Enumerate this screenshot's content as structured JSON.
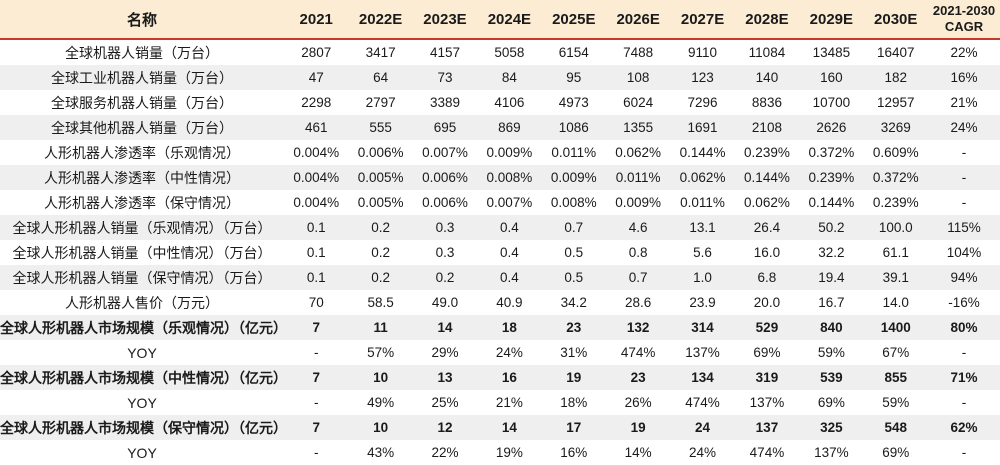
{
  "colors": {
    "header_bg": "#FBECD3",
    "accent_red": "#C5392B",
    "stripe": "#EFEFEF",
    "text": "#1A1A1A"
  },
  "table": {
    "header": {
      "name_label": "名称",
      "columns": [
        "2021",
        "2022E",
        "2023E",
        "2024E",
        "2025E",
        "2026E",
        "2027E",
        "2028E",
        "2029E",
        "2030E"
      ],
      "cagr_line1": "2021-2030",
      "cagr_line2": "CAGR"
    },
    "rows": [
      {
        "label": "全球机器人销量（万台）",
        "bold": false,
        "values": [
          "2807",
          "3417",
          "4157",
          "5058",
          "6154",
          "7488",
          "9110",
          "11084",
          "13485",
          "16407",
          "22%"
        ]
      },
      {
        "label": "全球工业机器人销量（万台）",
        "bold": false,
        "values": [
          "47",
          "64",
          "73",
          "84",
          "95",
          "108",
          "123",
          "140",
          "160",
          "182",
          "16%"
        ]
      },
      {
        "label": "全球服务机器人销量（万台）",
        "bold": false,
        "values": [
          "2298",
          "2797",
          "3389",
          "4106",
          "4973",
          "6024",
          "7296",
          "8836",
          "10700",
          "12957",
          "21%"
        ]
      },
      {
        "label": "全球其他机器人销量（万台）",
        "bold": false,
        "values": [
          "461",
          "555",
          "695",
          "869",
          "1086",
          "1355",
          "1691",
          "2108",
          "2626",
          "3269",
          "24%"
        ]
      },
      {
        "label": "人形机器人渗透率（乐观情况）",
        "bold": false,
        "values": [
          "0.004%",
          "0.006%",
          "0.007%",
          "0.009%",
          "0.011%",
          "0.062%",
          "0.144%",
          "0.239%",
          "0.372%",
          "0.609%",
          "-"
        ]
      },
      {
        "label": "人形机器人渗透率（中性情况）",
        "bold": false,
        "values": [
          "0.004%",
          "0.005%",
          "0.006%",
          "0.008%",
          "0.009%",
          "0.011%",
          "0.062%",
          "0.144%",
          "0.239%",
          "0.372%",
          "-"
        ]
      },
      {
        "label": "人形机器人渗透率（保守情况）",
        "bold": false,
        "values": [
          "0.004%",
          "0.005%",
          "0.006%",
          "0.007%",
          "0.008%",
          "0.009%",
          "0.011%",
          "0.062%",
          "0.144%",
          "0.239%",
          "-"
        ]
      },
      {
        "label": "全球人形机器人销量（乐观情况）（万台）",
        "bold": false,
        "values": [
          "0.1",
          "0.2",
          "0.3",
          "0.4",
          "0.7",
          "4.6",
          "13.1",
          "26.4",
          "50.2",
          "100.0",
          "115%"
        ]
      },
      {
        "label": "全球人形机器人销量（中性情况）（万台）",
        "bold": false,
        "values": [
          "0.1",
          "0.2",
          "0.3",
          "0.4",
          "0.5",
          "0.8",
          "5.6",
          "16.0",
          "32.2",
          "61.1",
          "104%"
        ]
      },
      {
        "label": "全球人形机器人销量（保守情况）（万台）",
        "bold": false,
        "values": [
          "0.1",
          "0.2",
          "0.2",
          "0.4",
          "0.5",
          "0.7",
          "1.0",
          "6.8",
          "19.4",
          "39.1",
          "94%"
        ]
      },
      {
        "label": "人形机器人售价（万元）",
        "bold": false,
        "values": [
          "70",
          "58.5",
          "49.0",
          "40.9",
          "34.2",
          "28.6",
          "23.9",
          "20.0",
          "16.7",
          "14.0",
          "-16%"
        ]
      },
      {
        "label": "全球人形机器人市场规模（乐观情况）（亿元）",
        "bold": true,
        "values": [
          "7",
          "11",
          "14",
          "18",
          "23",
          "132",
          "314",
          "529",
          "840",
          "1400",
          "80%"
        ]
      },
      {
        "label": "YOY",
        "bold": false,
        "values": [
          "-",
          "57%",
          "29%",
          "24%",
          "31%",
          "474%",
          "137%",
          "69%",
          "59%",
          "67%",
          "-"
        ]
      },
      {
        "label": "全球人形机器人市场规模（中性情况）（亿元）",
        "bold": true,
        "values": [
          "7",
          "10",
          "13",
          "16",
          "19",
          "23",
          "134",
          "319",
          "539",
          "855",
          "71%"
        ]
      },
      {
        "label": "YOY",
        "bold": false,
        "values": [
          "-",
          "49%",
          "25%",
          "21%",
          "18%",
          "26%",
          "474%",
          "137%",
          "69%",
          "59%",
          "-"
        ]
      },
      {
        "label": "全球人形机器人市场规模（保守情况）（亿元）",
        "bold": true,
        "values": [
          "7",
          "10",
          "12",
          "14",
          "17",
          "19",
          "24",
          "137",
          "325",
          "548",
          "62%"
        ]
      },
      {
        "label": "YOY",
        "bold": false,
        "values": [
          "-",
          "43%",
          "22%",
          "19%",
          "16%",
          "14%",
          "24%",
          "474%",
          "137%",
          "69%",
          "-"
        ]
      }
    ]
  }
}
